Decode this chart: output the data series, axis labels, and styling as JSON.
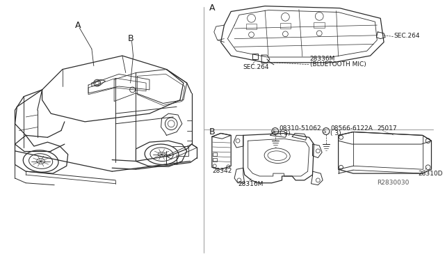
{
  "bg_color": "#ffffff",
  "line_color": "#2a2a2a",
  "text_color": "#1a1a1a",
  "gray_color": "#aaaaaa",
  "labels": {
    "A_car": "A",
    "B_car": "B",
    "A_detail": "A",
    "B_detail": "B",
    "sec264_1": "SEC.264",
    "sec264_2": "SEC.264",
    "part_28336M": "28336M",
    "bluetooth": "(BLUETOOTH MIC)",
    "part_28342": "28342",
    "part_08310": "08310-51062",
    "qty1": "( 3)",
    "part_08566": "08566-6122A",
    "qty2": "( 3)",
    "part_25017": "25017",
    "part_28316M": "28316M",
    "part_28310D": "28310D",
    "ref": "R2830030",
    "s1": "S",
    "s2": "S"
  },
  "fs_small": 6.5,
  "fs_med": 7.5,
  "fs_sec": 9.0
}
